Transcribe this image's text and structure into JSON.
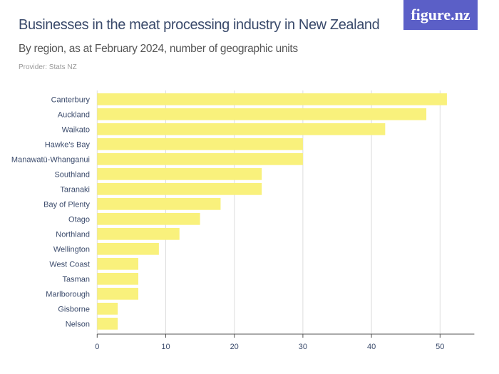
{
  "header": {
    "title": "Businesses in the meat processing industry in New Zealand",
    "subtitle": "By region, as at February 2024, number of geographic units",
    "provider": "Provider: Stats NZ",
    "logo_text": "figure.nz",
    "logo_color": "#5b5fc7"
  },
  "chart_data": {
    "type": "bar",
    "orientation": "horizontal",
    "title": "Businesses in the meat processing industry in New Zealand",
    "subtitle": "By region, as at February 2024, number of geographic units",
    "categories": [
      "Canterbury",
      "Auckland",
      "Waikato",
      "Hawke's Bay",
      "Manawatū-Whanganui",
      "Southland",
      "Taranaki",
      "Bay of Plenty",
      "Otago",
      "Northland",
      "Wellington",
      "West Coast",
      "Tasman",
      "Marlborough",
      "Gisborne",
      "Nelson"
    ],
    "values": [
      51,
      48,
      42,
      30,
      30,
      24,
      24,
      18,
      15,
      12,
      9,
      6,
      6,
      6,
      3,
      3
    ],
    "xlim": [
      0,
      55
    ],
    "xticks": [
      0,
      10,
      20,
      30,
      40,
      50
    ],
    "xlabel": "",
    "ylabel": "",
    "grid": true,
    "bar_color": "#f9f17c",
    "grid_color": "#dddddd"
  }
}
